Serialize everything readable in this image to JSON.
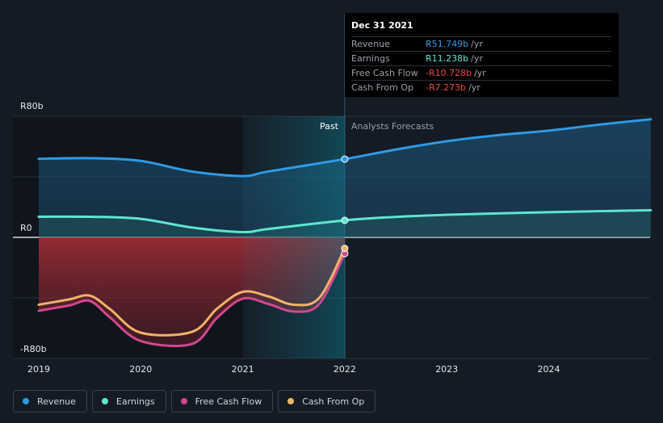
{
  "chart_data": {
    "type": "line",
    "x_ticks": [
      "2019",
      "2020",
      "2021",
      "2022",
      "2023",
      "2024"
    ],
    "y_tick_labels": [
      "R80b",
      "R0",
      "-R80b"
    ],
    "ylim": [
      -80,
      80
    ],
    "past_label": "Past",
    "forecast_label": "Analysts Forecasts",
    "series": [
      {
        "name": "Revenue",
        "color": "#2f9be6",
        "points": [
          [
            2019.0,
            51.9
          ],
          [
            2019.5,
            52.3
          ],
          [
            2020.0,
            50.5
          ],
          [
            2020.5,
            43.5
          ],
          [
            2021.0,
            40.5
          ],
          [
            2021.25,
            43.5
          ],
          [
            2022.0,
            51.7
          ],
          [
            2022.5,
            58.0
          ],
          [
            2023.0,
            63.5
          ],
          [
            2023.5,
            67.5
          ],
          [
            2024.0,
            70.5
          ],
          [
            2024.5,
            74.5
          ],
          [
            2025.0,
            78.0
          ]
        ]
      },
      {
        "name": "Earnings",
        "color": "#5ee6d0",
        "points": [
          [
            2019.0,
            13.6
          ],
          [
            2019.5,
            13.6
          ],
          [
            2020.0,
            12.2
          ],
          [
            2020.5,
            6.5
          ],
          [
            2021.0,
            3.5
          ],
          [
            2021.25,
            5.5
          ],
          [
            2022.0,
            11.2
          ],
          [
            2022.5,
            13.5
          ],
          [
            2023.0,
            14.9
          ],
          [
            2023.5,
            15.8
          ],
          [
            2024.0,
            16.6
          ],
          [
            2024.5,
            17.3
          ],
          [
            2025.0,
            17.9
          ]
        ]
      },
      {
        "name": "Free Cash Flow",
        "color": "#d2478f",
        "points": [
          [
            2019.0,
            -48.5
          ],
          [
            2019.3,
            -45.0
          ],
          [
            2019.5,
            -42.0
          ],
          [
            2019.7,
            -53.0
          ],
          [
            2020.0,
            -68.5
          ],
          [
            2020.5,
            -70.5
          ],
          [
            2020.75,
            -53.0
          ],
          [
            2021.0,
            -40.5
          ],
          [
            2021.25,
            -44.0
          ],
          [
            2021.5,
            -49.0
          ],
          [
            2021.75,
            -44.0
          ],
          [
            2022.0,
            -10.7
          ]
        ]
      },
      {
        "name": "Cash From Op",
        "color": "#f0b36a",
        "points": [
          [
            2019.0,
            -44.5
          ],
          [
            2019.3,
            -41.0
          ],
          [
            2019.5,
            -38.5
          ],
          [
            2019.7,
            -47.5
          ],
          [
            2020.0,
            -63.0
          ],
          [
            2020.5,
            -62.5
          ],
          [
            2020.75,
            -47.0
          ],
          [
            2021.0,
            -36.0
          ],
          [
            2021.25,
            -39.0
          ],
          [
            2021.5,
            -44.5
          ],
          [
            2021.75,
            -40.0
          ],
          [
            2022.0,
            -7.3
          ]
        ]
      }
    ]
  },
  "tooltip": {
    "date": "Dec 31 2021",
    "rows": [
      {
        "label": "Revenue",
        "value": "R51.749b",
        "unit": "/yr",
        "color": "#2f9be6"
      },
      {
        "label": "Earnings",
        "value": "R11.238b",
        "unit": "/yr",
        "color": "#5ee6d0"
      },
      {
        "label": "Free Cash Flow",
        "value": "-R10.728b",
        "unit": "/yr",
        "color": "#e64848"
      },
      {
        "label": "Cash From Op",
        "value": "-R7.273b",
        "unit": "/yr",
        "color": "#e64848"
      }
    ]
  },
  "legend": [
    {
      "label": "Revenue",
      "color": "#2f9be6"
    },
    {
      "label": "Earnings",
      "color": "#5ee6d0"
    },
    {
      "label": "Free Cash Flow",
      "color": "#d2478f"
    },
    {
      "label": "Cash From Op",
      "color": "#f0b36a"
    }
  ]
}
